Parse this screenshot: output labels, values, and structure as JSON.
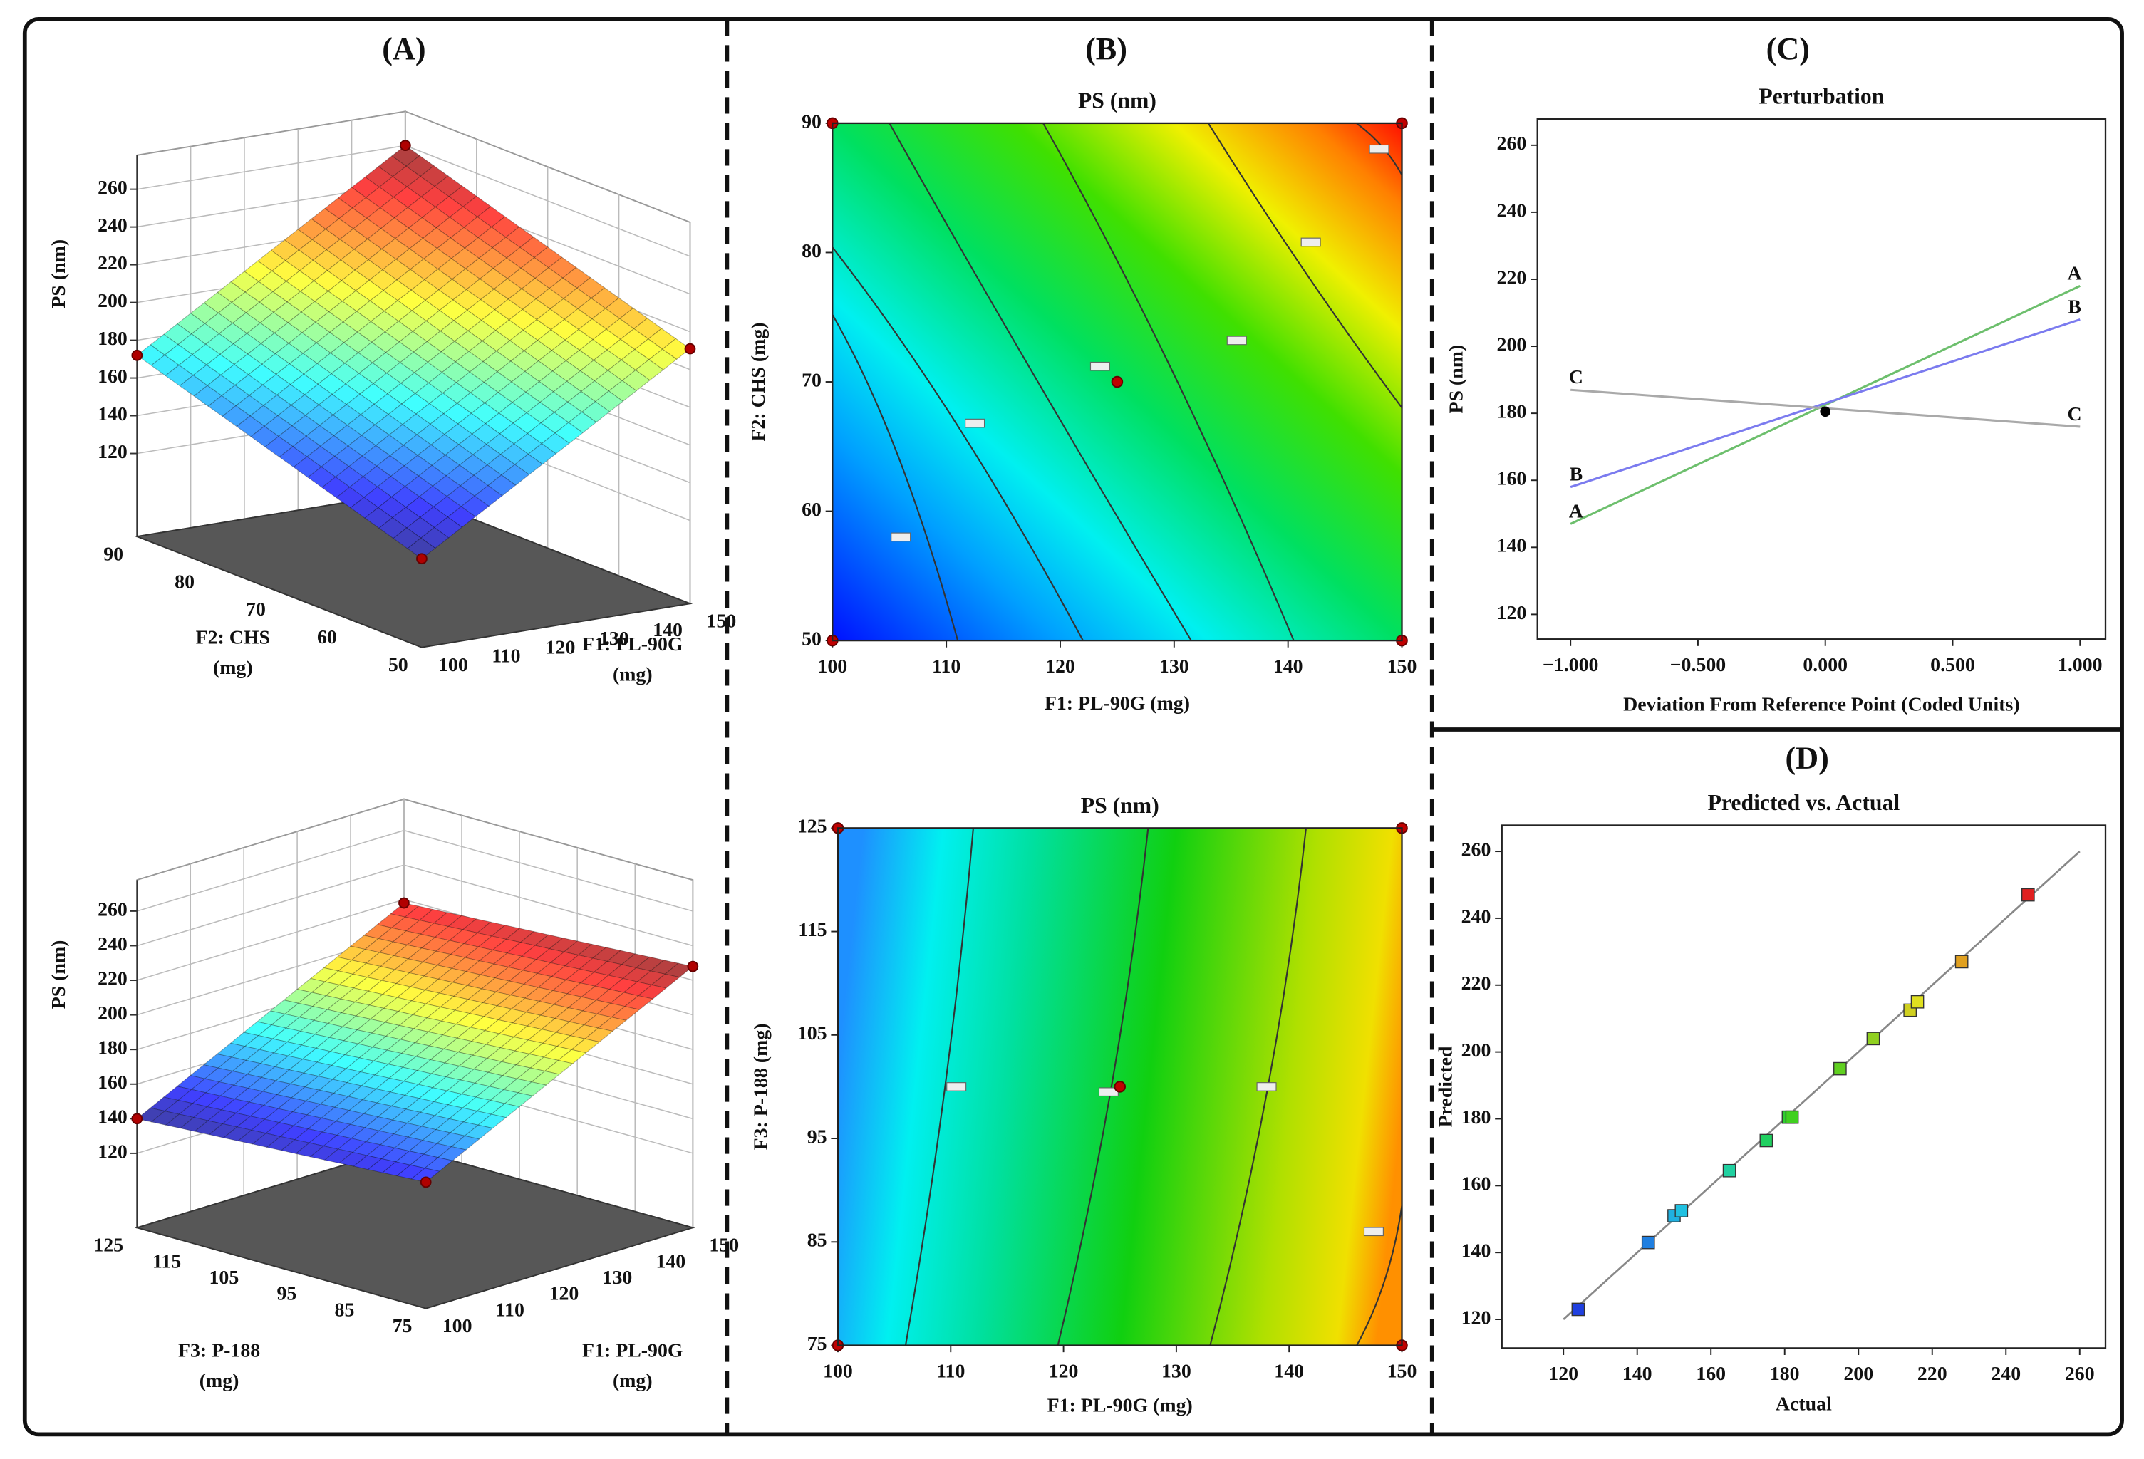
{
  "panel_labels": [
    "(A)",
    "(B)",
    "(C)",
    "(D)"
  ],
  "chart_data": [
    {
      "type": "surface3d",
      "zlabel": "PS (nm)",
      "xlabel": [
        "F1: PL-90G",
        "(mg)"
      ],
      "ylabel": [
        "F2: CHS",
        "(mg)"
      ],
      "xlim": [
        100,
        150
      ],
      "xticks": [
        100,
        110,
        120,
        130,
        140,
        150
      ],
      "ylim": [
        50,
        90
      ],
      "yticks": [
        50,
        60,
        70,
        80,
        90
      ],
      "zticks": [
        120,
        140,
        160,
        180,
        200,
        220,
        240,
        260
      ],
      "z": [
        [
          123,
          172
        ],
        [
          211,
          260
        ]
      ]
    },
    {
      "type": "surface3d",
      "zlabel": "PS (nm)",
      "xlabel": [
        "F1: PL-90G",
        "(mg)"
      ],
      "ylabel": [
        "F3: P-188",
        "(mg)"
      ],
      "xlim": [
        100,
        150
      ],
      "xticks": [
        100,
        110,
        120,
        130,
        140,
        150
      ],
      "ylim": [
        75,
        125
      ],
      "yticks": [
        75,
        85,
        95,
        105,
        115,
        125
      ],
      "zticks": [
        120,
        140,
        160,
        180,
        200,
        220,
        240,
        260
      ],
      "z": [
        [
          150,
          140
        ],
        [
          228,
          218
        ]
      ]
    },
    {
      "type": "contour",
      "title": "PS (nm)",
      "xlabel": "F1: PL-90G (mg)",
      "ylabel": "F2: CHS (mg)",
      "xlim": [
        100,
        150
      ],
      "xticks": [
        100,
        110,
        120,
        130,
        140,
        150
      ],
      "ylim": [
        50,
        90
      ],
      "yticks": [
        50,
        60,
        70,
        80,
        90
      ]
    },
    {
      "type": "contour",
      "title": "PS (nm)",
      "xlabel": "F1: PL-90G (mg)",
      "ylabel": "F3: P-188 (mg)",
      "xlim": [
        100,
        150
      ],
      "xticks": [
        100,
        110,
        120,
        130,
        140,
        150
      ],
      "ylim": [
        75,
        125
      ],
      "yticks": [
        75,
        85,
        95,
        105,
        115,
        125
      ]
    },
    {
      "type": "line",
      "title": "Perturbation",
      "xlabel": "Deviation From Reference Point (Coded Units)",
      "ylabel": "PS (nm)",
      "xlim": [
        -1.13,
        1.1
      ],
      "xticks": [
        {
          "value": -1,
          "label": "−1.000"
        },
        {
          "value": -0.5,
          "label": "−0.500"
        },
        {
          "value": 0,
          "label": "0.000"
        },
        {
          "value": 0.5,
          "label": "0.500"
        },
        {
          "value": 1,
          "label": "1.000"
        }
      ],
      "ylim": [
        112.6,
        267.8
      ],
      "yticks": [
        120,
        140,
        160,
        180,
        200,
        220,
        240,
        260
      ],
      "x": [
        -1,
        1
      ],
      "series": [
        {
          "name": "A",
          "color": "#6dbf6d",
          "values": [
            147,
            218
          ]
        },
        {
          "name": "B",
          "color": "#7b7bef",
          "values": [
            158,
            208
          ]
        },
        {
          "name": "C",
          "color": "#a9a9a9",
          "values": [
            187,
            176
          ]
        }
      ],
      "reference_point": {
        "x": 0,
        "y": 180.5
      }
    },
    {
      "type": "scatter",
      "title": "Predicted vs. Actual",
      "xlabel": "Actual",
      "ylabel": "Predicted",
      "xlim": [
        103.3,
        267
      ],
      "xticks": [
        120,
        140,
        160,
        180,
        200,
        220,
        240,
        260
      ],
      "ylim": [
        111.4,
        267.8
      ],
      "yticks": [
        120,
        140,
        160,
        180,
        200,
        220,
        240,
        260
      ],
      "x": [
        124,
        143,
        150,
        152,
        165,
        175,
        181,
        182,
        195,
        204,
        214,
        216,
        228,
        246
      ],
      "values": [
        123,
        143,
        151,
        152.5,
        164.5,
        173.5,
        180.5,
        180.5,
        195,
        204,
        212.5,
        215,
        227,
        247
      ],
      "colors": [
        "#2040e0",
        "#1f7fe0",
        "#20b0e0",
        "#20c0e0",
        "#20d0a0",
        "#20d060",
        "#30d030",
        "#40d020",
        "#60d020",
        "#90d020",
        "#d0d020",
        "#e0e020",
        "#e0a020",
        "#e02020"
      ]
    }
  ]
}
